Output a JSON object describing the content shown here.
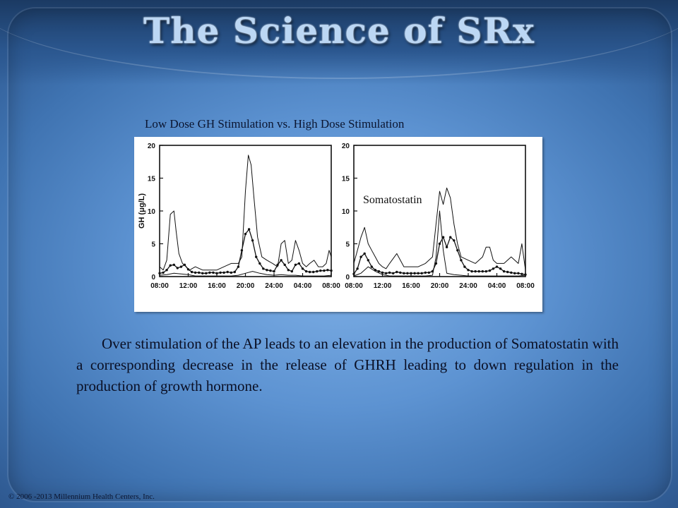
{
  "slide": {
    "title": "The Science of SRx",
    "chart_heading": "Low Dose GH Stimulation vs. High Dose Stimulation",
    "overlay_label": "Somatostatin",
    "body": "Over stimulation of the AP leads to an elevation in the production of Somatostatin with a corresponding decrease in the release of GHRH leading to down regulation in the production of growth hormone.",
    "copyright": "© 2006 -2013 Millennium Health Centers, Inc."
  },
  "chart_data": [
    {
      "type": "line",
      "ylabel": "GH (μg/L)",
      "ylim": [
        0,
        20
      ],
      "yticks": [
        0,
        5,
        10,
        15,
        20
      ],
      "xticks": [
        "08:00",
        "12:00",
        "16:00",
        "20:00",
        "24:00",
        "04:00",
        "08:00"
      ],
      "grid": false,
      "series": [
        {
          "style": "upper",
          "x": [
            0,
            0.5,
            1,
            1.5,
            2,
            2.3,
            2.7,
            3.2,
            3.7,
            4.2,
            5,
            6,
            7,
            8,
            9,
            10,
            11,
            11.5,
            12,
            12.4,
            12.8,
            13.2,
            13.7,
            14.3,
            15,
            15.8,
            16.5,
            17,
            17.5,
            18,
            18.5,
            19,
            19.5,
            20,
            20.5,
            21,
            21.6,
            22.2,
            22.8,
            23.3,
            23.7,
            24
          ],
          "y": [
            1.5,
            1,
            2.5,
            9.5,
            10,
            7,
            3.5,
            2,
            1.5,
            1,
            1.5,
            1,
            1,
            1,
            1.5,
            2,
            2,
            3,
            13,
            18.5,
            17,
            12,
            6,
            3,
            2.5,
            2,
            1.5,
            5,
            5.5,
            2,
            2.5,
            5.5,
            4,
            2,
            1.5,
            2,
            2.5,
            1.5,
            1.5,
            2,
            4,
            3
          ]
        },
        {
          "style": "mean-dots",
          "x": [
            0,
            0.5,
            1,
            1.5,
            2,
            2.5,
            3,
            3.5,
            4,
            4.5,
            5,
            5.5,
            6,
            6.5,
            7,
            7.5,
            8,
            8.5,
            9,
            9.5,
            10,
            10.5,
            11,
            11.5,
            12,
            12.5,
            13,
            13.5,
            14,
            14.5,
            15,
            15.5,
            16,
            16.5,
            17,
            17.5,
            18,
            18.5,
            19,
            19.5,
            20,
            20.5,
            21,
            21.5,
            22,
            22.5,
            23,
            23.5,
            24
          ],
          "y": [
            0.5,
            0.6,
            1,
            1.7,
            1.8,
            1.3,
            1.5,
            1.8,
            1.1,
            0.7,
            0.6,
            0.6,
            0.5,
            0.5,
            0.6,
            0.6,
            0.5,
            0.6,
            0.6,
            0.7,
            0.6,
            0.7,
            1.5,
            4,
            6.5,
            7.2,
            5.5,
            3,
            2,
            1.2,
            1,
            0.9,
            0.8,
            1.8,
            2.5,
            1.8,
            1,
            0.8,
            1.8,
            2,
            1.2,
            0.8,
            0.7,
            0.7,
            0.8,
            0.9,
            0.9,
            1,
            0.9
          ]
        },
        {
          "style": "lower",
          "x": [
            0,
            1,
            2,
            3,
            4,
            5,
            6,
            7,
            8,
            9,
            10,
            11,
            12,
            13,
            14,
            15,
            16,
            17,
            18,
            19,
            20,
            21,
            22,
            23,
            24
          ],
          "y": [
            0.2,
            0.3,
            0.5,
            0.4,
            0.3,
            0.1,
            0.1,
            0.1,
            0.1,
            0.1,
            0.1,
            0.2,
            0.5,
            0.8,
            0.5,
            0.3,
            0.2,
            0.3,
            0.2,
            0.2,
            0.1,
            0.1,
            0.1,
            0.1,
            0.2
          ]
        }
      ]
    },
    {
      "type": "line",
      "ylim": [
        0,
        20
      ],
      "yticks": [
        0,
        5,
        10,
        15,
        20
      ],
      "xticks": [
        "08:00",
        "12:00",
        "16:00",
        "20:00",
        "24:00",
        "04:00",
        "08:00"
      ],
      "grid": false,
      "series": [
        {
          "style": "upper",
          "x": [
            0,
            0.5,
            1,
            1.5,
            2,
            2.5,
            3,
            3.5,
            4,
            4.5,
            5,
            6,
            7,
            8,
            9,
            10,
            11,
            11.5,
            12,
            12.5,
            13,
            13.5,
            14,
            14.5,
            15,
            16,
            17,
            18,
            18.5,
            19,
            19.5,
            20,
            21,
            22,
            23,
            23.5,
            24
          ],
          "y": [
            2,
            4,
            6,
            7.5,
            5,
            4,
            3,
            2,
            1.5,
            1.2,
            2,
            3.5,
            1.5,
            1.5,
            1.5,
            2,
            3,
            8,
            13,
            11,
            13.5,
            12,
            8,
            5,
            3,
            2.5,
            2,
            3,
            4.5,
            4.5,
            2.5,
            2,
            2,
            3,
            2,
            5,
            1
          ]
        },
        {
          "style": "mean-dots",
          "x": [
            0,
            0.5,
            1,
            1.5,
            2,
            2.5,
            3,
            3.5,
            4,
            4.5,
            5,
            5.5,
            6,
            6.5,
            7,
            7.5,
            8,
            8.5,
            9,
            9.5,
            10,
            10.5,
            11,
            11.5,
            12,
            12.5,
            13,
            13.5,
            14,
            14.5,
            15,
            15.5,
            16,
            16.5,
            17,
            17.5,
            18,
            18.5,
            19,
            19.5,
            20,
            20.5,
            21,
            21.5,
            22,
            22.5,
            23,
            23.5,
            24
          ],
          "y": [
            0.4,
            1.2,
            3,
            3.5,
            2.5,
            1.5,
            1,
            0.8,
            0.6,
            0.5,
            0.6,
            0.5,
            0.7,
            0.6,
            0.5,
            0.5,
            0.5,
            0.5,
            0.5,
            0.5,
            0.6,
            0.6,
            0.8,
            2,
            5,
            6,
            4.5,
            6,
            5.5,
            4,
            2.5,
            1.5,
            1,
            0.8,
            0.8,
            0.8,
            0.8,
            0.8,
            0.9,
            1.2,
            1.5,
            1.2,
            0.8,
            0.7,
            0.6,
            0.5,
            0.5,
            0.4,
            0.3
          ]
        },
        {
          "style": "lower",
          "x": [
            0,
            1,
            2,
            3,
            4,
            5,
            6,
            7,
            8,
            9,
            10,
            11,
            11.5,
            12,
            12.5,
            13,
            14,
            15,
            16,
            17,
            18,
            19,
            20,
            21,
            22,
            23,
            24
          ],
          "y": [
            0.1,
            0.5,
            1.5,
            0.8,
            0.3,
            0.1,
            0.1,
            0.1,
            0.1,
            0.1,
            0.1,
            0.2,
            3,
            10,
            4,
            0.5,
            0.3,
            0.2,
            0.1,
            0.1,
            0.1,
            0.1,
            0.1,
            0.1,
            0.1,
            0.1,
            0.2
          ]
        }
      ]
    }
  ]
}
